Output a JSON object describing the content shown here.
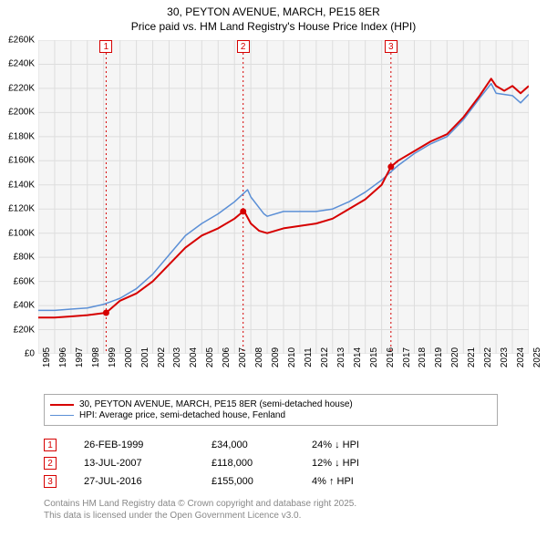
{
  "title": {
    "line1": "30, PEYTON AVENUE, MARCH, PE15 8ER",
    "line2": "Price paid vs. HM Land Registry's House Price Index (HPI)",
    "fontsize": 12,
    "color": "#000000"
  },
  "chart": {
    "type": "line",
    "background_color": "#f5f5f5",
    "grid_color": "#dddddd",
    "x_axis": {
      "min": 1995,
      "max": 2025,
      "ticks": [
        1995,
        1996,
        1997,
        1998,
        1999,
        2000,
        2001,
        2002,
        2003,
        2004,
        2005,
        2006,
        2007,
        2008,
        2009,
        2010,
        2011,
        2012,
        2013,
        2014,
        2015,
        2016,
        2017,
        2018,
        2019,
        2020,
        2021,
        2022,
        2023,
        2024,
        2025
      ],
      "tick_fontsize": 10,
      "tick_rotation": -90
    },
    "y_axis": {
      "min": 0,
      "max": 260000,
      "ticks": [
        0,
        20000,
        40000,
        60000,
        80000,
        100000,
        120000,
        140000,
        160000,
        180000,
        200000,
        220000,
        240000,
        260000
      ],
      "tick_labels": [
        "£0",
        "£20K",
        "£40K",
        "£60K",
        "£80K",
        "£100K",
        "£120K",
        "£140K",
        "£160K",
        "£180K",
        "£200K",
        "£220K",
        "£240K",
        "£260K"
      ],
      "tick_fontsize": 10
    },
    "series": [
      {
        "name": "price_paid",
        "label": "30, PEYTON AVENUE, MARCH, PE15 8ER (semi-detached house)",
        "color": "#d60000",
        "line_width": 2,
        "data": [
          [
            1995,
            30000
          ],
          [
            1996,
            30000
          ],
          [
            1997,
            31000
          ],
          [
            1998,
            32000
          ],
          [
            1999.15,
            34000
          ],
          [
            2000,
            44000
          ],
          [
            2001,
            50000
          ],
          [
            2002,
            60000
          ],
          [
            2003,
            74000
          ],
          [
            2004,
            88000
          ],
          [
            2005,
            98000
          ],
          [
            2006,
            104000
          ],
          [
            2007,
            112000
          ],
          [
            2007.53,
            118000
          ],
          [
            2007.6,
            118000
          ],
          [
            2008,
            108000
          ],
          [
            2008.5,
            102000
          ],
          [
            2009,
            100000
          ],
          [
            2010,
            104000
          ],
          [
            2011,
            106000
          ],
          [
            2012,
            108000
          ],
          [
            2013,
            112000
          ],
          [
            2014,
            120000
          ],
          [
            2015,
            128000
          ],
          [
            2016,
            140000
          ],
          [
            2016.57,
            155000
          ],
          [
            2017,
            160000
          ],
          [
            2018,
            168000
          ],
          [
            2019,
            176000
          ],
          [
            2020,
            182000
          ],
          [
            2021,
            196000
          ],
          [
            2022,
            214000
          ],
          [
            2022.7,
            228000
          ],
          [
            2023,
            222000
          ],
          [
            2023.5,
            218000
          ],
          [
            2024,
            222000
          ],
          [
            2024.5,
            216000
          ],
          [
            2025,
            222000
          ]
        ],
        "markers": [
          {
            "x": 1999.15,
            "y": 34000
          },
          {
            "x": 2007.53,
            "y": 118000
          },
          {
            "x": 2016.57,
            "y": 155000
          }
        ]
      },
      {
        "name": "hpi",
        "label": "HPI: Average price, semi-detached house, Fenland",
        "color": "#5b8fd6",
        "line_width": 1.5,
        "data": [
          [
            1995,
            36000
          ],
          [
            1996,
            36000
          ],
          [
            1997,
            37000
          ],
          [
            1998,
            38000
          ],
          [
            1999,
            41000
          ],
          [
            2000,
            46000
          ],
          [
            2001,
            54000
          ],
          [
            2002,
            66000
          ],
          [
            2003,
            82000
          ],
          [
            2004,
            98000
          ],
          [
            2005,
            108000
          ],
          [
            2006,
            116000
          ],
          [
            2007,
            126000
          ],
          [
            2007.8,
            136000
          ],
          [
            2008,
            130000
          ],
          [
            2008.8,
            116000
          ],
          [
            2009,
            114000
          ],
          [
            2010,
            118000
          ],
          [
            2011,
            118000
          ],
          [
            2012,
            118000
          ],
          [
            2013,
            120000
          ],
          [
            2014,
            126000
          ],
          [
            2015,
            134000
          ],
          [
            2016,
            144000
          ],
          [
            2017,
            156000
          ],
          [
            2018,
            166000
          ],
          [
            2019,
            174000
          ],
          [
            2020,
            180000
          ],
          [
            2021,
            194000
          ],
          [
            2022,
            212000
          ],
          [
            2022.7,
            224000
          ],
          [
            2023,
            216000
          ],
          [
            2024,
            214000
          ],
          [
            2024.5,
            208000
          ],
          [
            2025,
            215000
          ]
        ]
      }
    ],
    "annotations": [
      {
        "num": "1",
        "x": 1999.15,
        "y_top": true
      },
      {
        "num": "2",
        "x": 2007.53,
        "y_top": true
      },
      {
        "num": "3",
        "x": 2016.57,
        "y_top": true
      }
    ],
    "annotation_line_color": "#d60000",
    "annotation_line_dash": "2,3"
  },
  "legend": {
    "items": [
      {
        "color": "#d60000",
        "width": 2,
        "label": "30, PEYTON AVENUE, MARCH, PE15 8ER (semi-detached house)"
      },
      {
        "color": "#5b8fd6",
        "width": 1.5,
        "label": "HPI: Average price, semi-detached house, Fenland"
      }
    ]
  },
  "events": [
    {
      "num": "1",
      "date": "26-FEB-1999",
      "price": "£34,000",
      "diff": "24% ↓ HPI"
    },
    {
      "num": "2",
      "date": "13-JUL-2007",
      "price": "£118,000",
      "diff": "12% ↓ HPI"
    },
    {
      "num": "3",
      "date": "27-JUL-2016",
      "price": "£155,000",
      "diff": "4% ↑ HPI"
    }
  ],
  "attribution": {
    "line1": "Contains HM Land Registry data © Crown copyright and database right 2025.",
    "line2": "This data is licensed under the Open Government Licence v3.0."
  }
}
